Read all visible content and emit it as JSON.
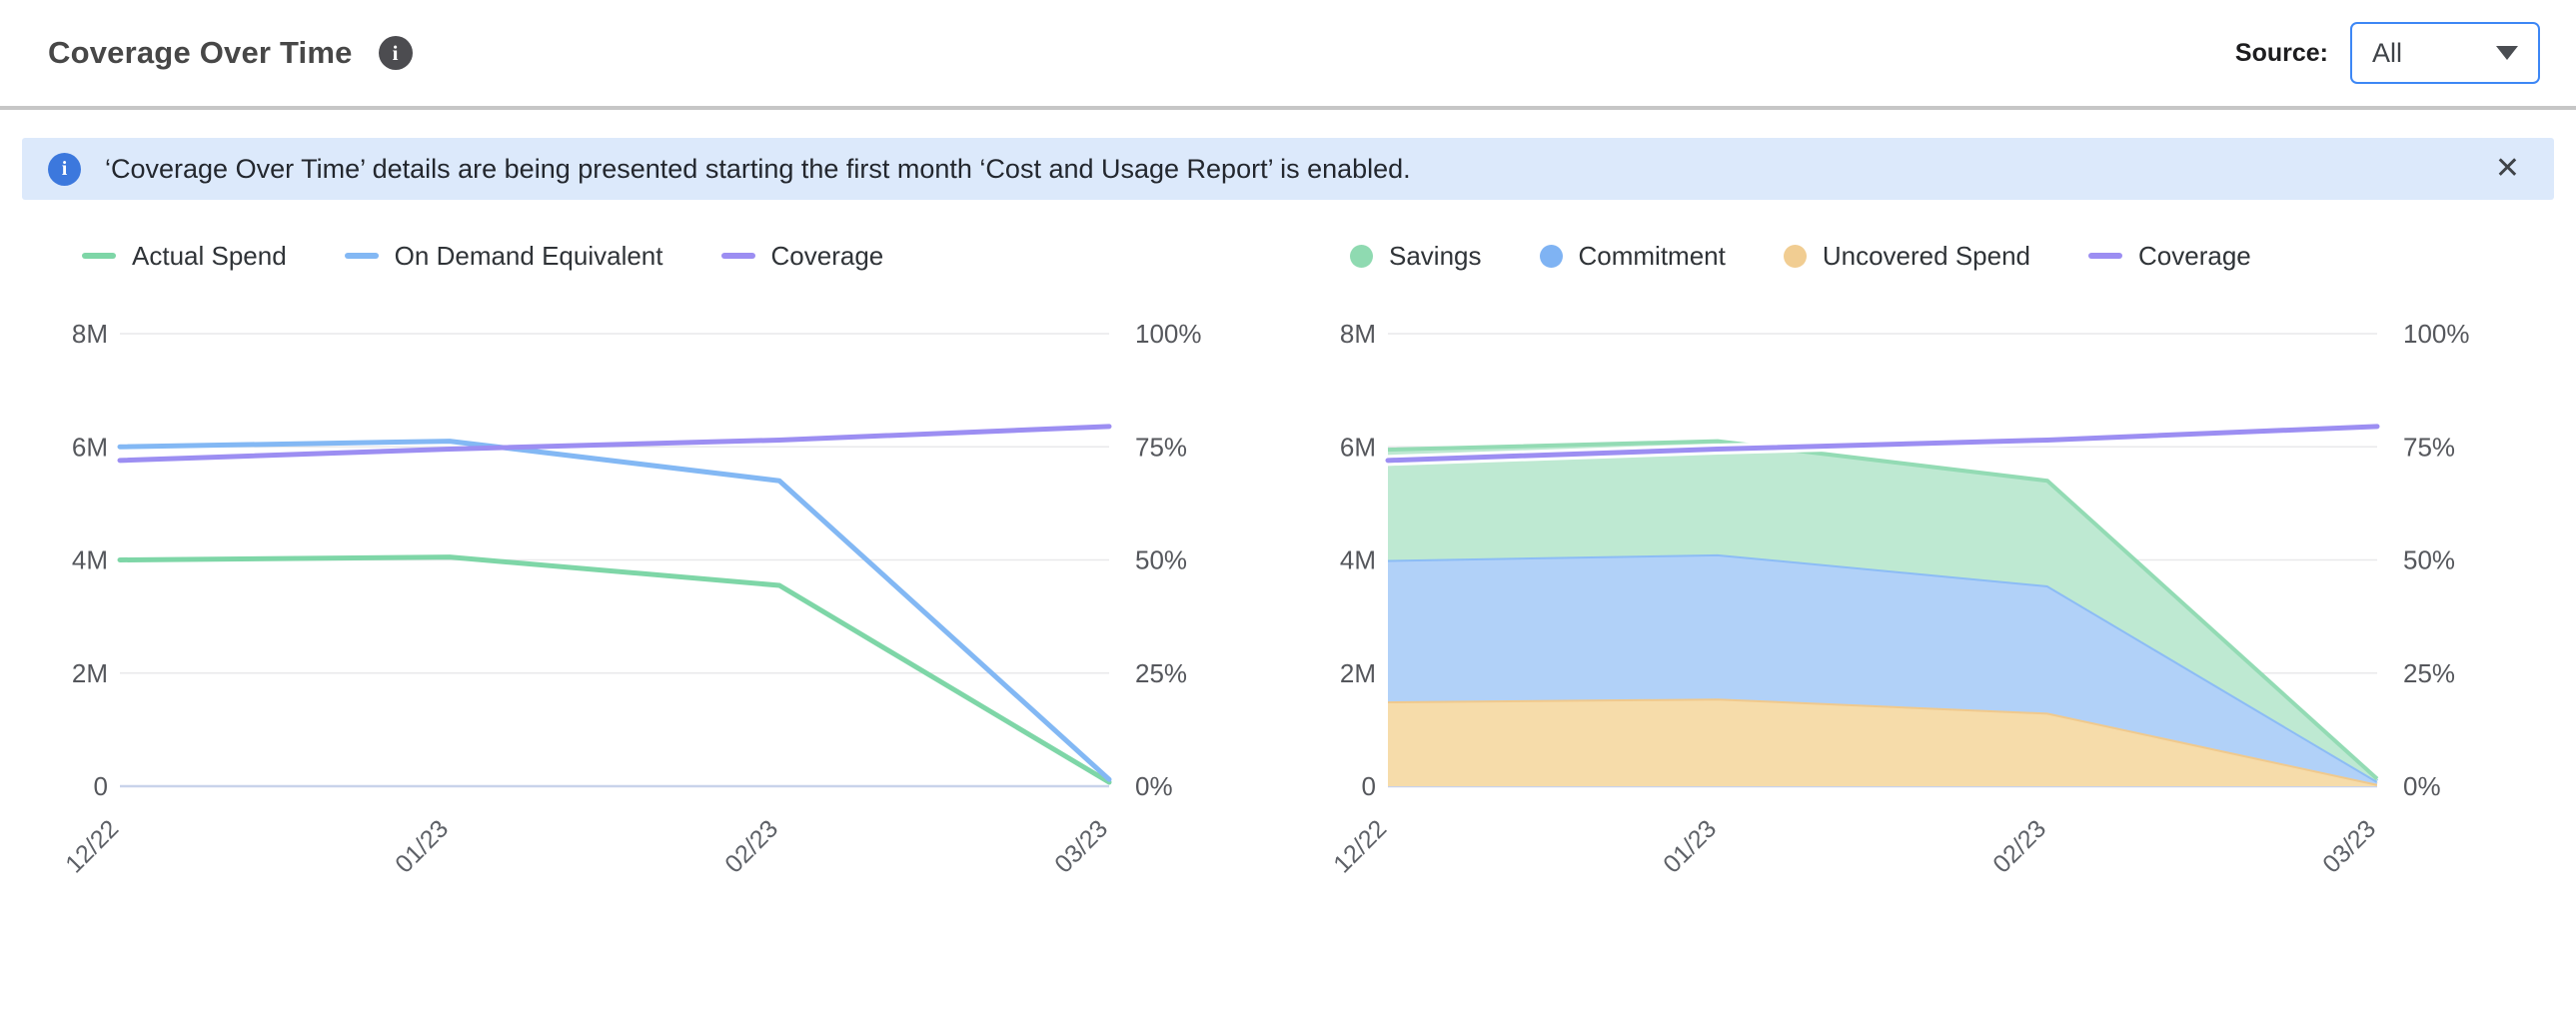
{
  "header": {
    "title": "Coverage Over Time",
    "info_icon": "i",
    "source_label": "Source:",
    "source_value": "All"
  },
  "banner": {
    "icon": "i",
    "text": "‘Coverage Over Time’ details are being presented starting the first month ‘Cost and Usage Report’ is enabled.",
    "close": "✕"
  },
  "colors": {
    "accent_blue": "#3d87f5",
    "banner_bg": "#dce9fb",
    "banner_icon_bg": "#3c78dd",
    "divider_gray": "#c6c6c6",
    "actual_spend_green": "#7ed6a7",
    "on_demand_blue": "#83b8f4",
    "coverage_purple": "#9c8ef2",
    "savings_fill": "#bee9d2",
    "commitment_fill": "#b1d1f8",
    "uncovered_fill": "#f6dcaa"
  },
  "chart_style": {
    "grid_color": "#e9e9eb",
    "baseline_color": "#c9d3ea",
    "tick_color": "#55575c",
    "xtick_color": "#5e6167"
  },
  "chart_data": [
    {
      "type": "line",
      "units": "left axis: spend in millions USD, right axis: coverage %",
      "x_categories": [
        "12/22",
        "01/23",
        "02/23",
        "03/23"
      ],
      "y_axis_left": {
        "ticks": [
          "0",
          "2M",
          "4M",
          "6M",
          "8M"
        ],
        "max": 8
      },
      "y_axis_right": {
        "ticks": [
          "0%",
          "25%",
          "50%",
          "75%",
          "100%"
        ],
        "max": 100
      },
      "legend": [
        {
          "label": "Actual Spend",
          "marker": "line",
          "color": "#7ed6a7"
        },
        {
          "label": "On Demand Equivalent",
          "marker": "line",
          "color": "#83b8f4"
        },
        {
          "label": "Coverage",
          "marker": "line",
          "color": "#9c8ef2"
        }
      ],
      "series": [
        {
          "name": "Actual Spend",
          "type": "line",
          "axis": "left",
          "color": "#7ed6a7",
          "values": [
            4.0,
            4.05,
            3.55,
            0.07
          ]
        },
        {
          "name": "On Demand Equivalent",
          "type": "line",
          "axis": "left",
          "color": "#83b8f4",
          "values": [
            6.0,
            6.1,
            5.4,
            0.12
          ]
        },
        {
          "name": "Coverage",
          "type": "line",
          "axis": "right",
          "color": "#9c8ef2",
          "values": [
            72,
            74.5,
            76.5,
            79.5
          ]
        }
      ]
    },
    {
      "type": "area",
      "stacked": true,
      "units": "left axis: spend in millions USD, right axis: coverage %",
      "x_categories": [
        "12/22",
        "01/23",
        "02/23",
        "03/23"
      ],
      "y_axis_left": {
        "ticks": [
          "0",
          "2M",
          "4M",
          "6M",
          "8M"
        ],
        "max": 8
      },
      "y_axis_right": {
        "ticks": [
          "0%",
          "25%",
          "50%",
          "75%",
          "100%"
        ],
        "max": 100
      },
      "legend": [
        {
          "label": "Savings",
          "marker": "dot",
          "color": "#8fdab1"
        },
        {
          "label": "Commitment",
          "marker": "dot",
          "color": "#7fb3f3"
        },
        {
          "label": "Uncovered Spend",
          "marker": "dot",
          "color": "#f1cd92"
        },
        {
          "label": "Coverage",
          "marker": "line",
          "color": "#9c8ef2"
        }
      ],
      "series": [
        {
          "name": "Uncovered Spend",
          "type": "area",
          "axis": "left",
          "color": "#f0c98d",
          "fill": "#f6dcaa",
          "values": [
            1.5,
            1.55,
            1.3,
            0.04
          ]
        },
        {
          "name": "Commitment",
          "type": "area",
          "axis": "left",
          "color": "#8cbcf5",
          "fill": "#b1d1f8",
          "values": [
            2.5,
            2.55,
            2.25,
            0.05
          ]
        },
        {
          "name": "Savings",
          "type": "area",
          "axis": "left",
          "color": "#93dbb4",
          "fill": "#bee9d2",
          "values": [
            1.95,
            2.0,
            1.85,
            0.04
          ]
        },
        {
          "name": "Coverage",
          "type": "line",
          "axis": "right",
          "color": "#9c8ef2",
          "halo": "#ffffff",
          "values": [
            72,
            74.5,
            76.5,
            79.5
          ]
        }
      ]
    }
  ]
}
